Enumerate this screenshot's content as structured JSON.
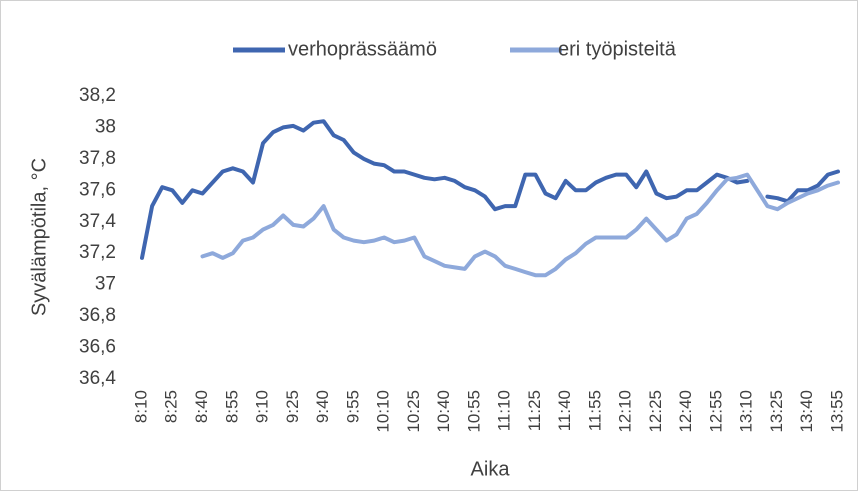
{
  "chart_data": {
    "type": "line",
    "x_label": "Aika",
    "y_label": "Syvälämpötila, °C",
    "legend": "top",
    "grid": false,
    "categories": [
      "8:10",
      null,
      null,
      "8:25",
      null,
      null,
      "8:40",
      null,
      null,
      "8:55",
      null,
      null,
      "9:10",
      null,
      null,
      "9:25",
      null,
      null,
      "9:40",
      null,
      null,
      "9:55",
      null,
      null,
      "10:10",
      null,
      null,
      "10:25",
      null,
      null,
      "10:40",
      null,
      null,
      "10:55",
      null,
      null,
      "11:10",
      null,
      null,
      "11:25",
      null,
      null,
      "11:40",
      null,
      null,
      "11:55",
      null,
      null,
      "12:10",
      null,
      null,
      "12:25",
      null,
      null,
      "12:40",
      null,
      null,
      "12:55",
      null,
      null,
      "13:10",
      null,
      null,
      "13:25",
      null,
      null,
      "13:40",
      null,
      null,
      "13:55"
    ],
    "series": [
      {
        "name": "verhoprässäämö",
        "color": "#3f66b0",
        "values": [
          37.17,
          37.5,
          37.62,
          37.6,
          37.52,
          37.6,
          37.58,
          37.65,
          37.72,
          37.74,
          37.72,
          37.65,
          37.9,
          37.97,
          38.0,
          38.01,
          37.98,
          38.03,
          38.04,
          37.95,
          37.92,
          37.84,
          37.8,
          37.77,
          37.76,
          37.72,
          37.72,
          37.7,
          37.68,
          37.67,
          37.68,
          37.66,
          37.62,
          37.6,
          37.56,
          37.48,
          37.5,
          37.5,
          37.7,
          37.7,
          37.58,
          37.55,
          37.66,
          37.6,
          37.6,
          37.65,
          37.68,
          37.7,
          37.7,
          37.62,
          37.72,
          37.58,
          37.55,
          37.56,
          37.6,
          37.6,
          37.65,
          37.7,
          37.68,
          37.65,
          37.66,
          null,
          37.56,
          37.55,
          37.53,
          37.6,
          37.6,
          37.63,
          37.7,
          37.72
        ]
      },
      {
        "name": "eri työpisteitä",
        "color": "#8ea9db",
        "values": [
          null,
          null,
          null,
          null,
          null,
          null,
          37.18,
          37.2,
          37.17,
          37.2,
          37.28,
          37.3,
          37.35,
          37.38,
          37.44,
          37.38,
          37.37,
          37.42,
          37.5,
          37.35,
          37.3,
          37.28,
          37.27,
          37.28,
          37.3,
          37.27,
          37.28,
          37.3,
          37.18,
          37.15,
          37.12,
          37.11,
          37.1,
          37.18,
          37.21,
          37.18,
          37.12,
          37.1,
          37.08,
          37.06,
          37.06,
          37.1,
          37.16,
          37.2,
          37.26,
          37.3,
          37.3,
          37.3,
          37.3,
          37.35,
          37.42,
          37.35,
          37.28,
          37.32,
          37.42,
          37.45,
          37.52,
          37.6,
          37.67,
          37.68,
          37.7,
          37.6,
          37.5,
          37.48,
          37.52,
          37.55,
          37.58,
          37.6,
          37.63,
          37.65
        ]
      }
    ],
    "ylim": [
      36.4,
      38.2
    ],
    "yticks": [
      {
        "value": 36.4,
        "label": "36,4"
      },
      {
        "value": 36.6,
        "label": "36,6"
      },
      {
        "value": 36.8,
        "label": "36,8"
      },
      37,
      {
        "value": 37.2,
        "label": "37,2"
      },
      {
        "value": 37.4,
        "label": "37,4"
      },
      {
        "value": 37.6,
        "label": "37,6"
      },
      {
        "value": 37.8,
        "label": "37,8"
      },
      38,
      {
        "value": 38.2,
        "label": "38,2"
      }
    ]
  }
}
